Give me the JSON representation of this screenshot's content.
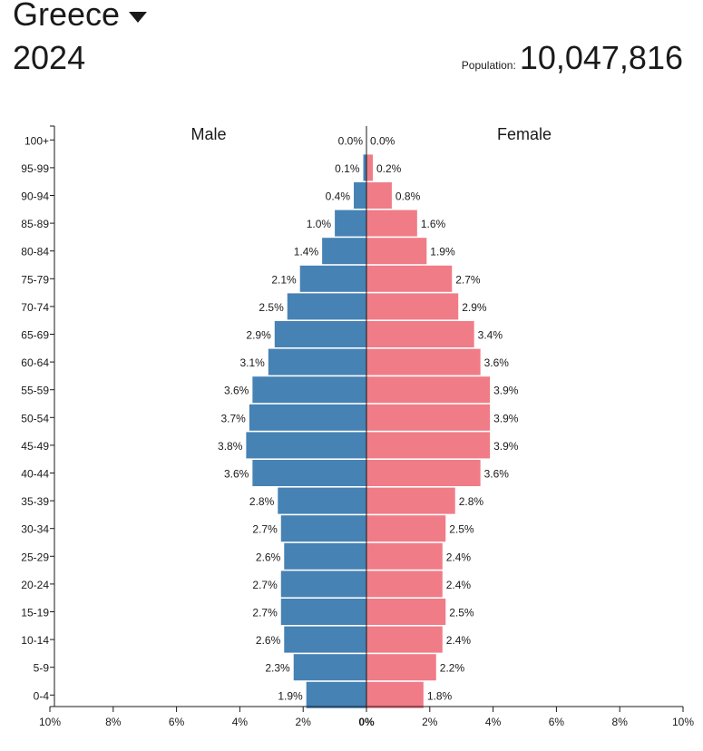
{
  "header": {
    "country": "Greece",
    "year": "2024",
    "population_label": "Population:",
    "population_value": "10,047,816"
  },
  "colors": {
    "male": "#4682b4",
    "female": "#f07c87"
  },
  "chart_data": {
    "type": "bar",
    "orientation": "horizontal-population-pyramid",
    "categories": [
      "100+",
      "95-99",
      "90-94",
      "85-89",
      "80-84",
      "75-79",
      "70-74",
      "65-69",
      "60-64",
      "55-59",
      "50-54",
      "45-49",
      "40-44",
      "35-39",
      "30-34",
      "25-29",
      "20-24",
      "15-19",
      "10-14",
      "5-9",
      "0-4"
    ],
    "series": [
      {
        "name": "Male",
        "values": [
          0.0,
          0.1,
          0.4,
          1.0,
          1.4,
          2.1,
          2.5,
          2.9,
          3.1,
          3.6,
          3.7,
          3.8,
          3.6,
          2.8,
          2.7,
          2.6,
          2.7,
          2.7,
          2.6,
          2.3,
          1.9
        ],
        "labels": [
          "0.0%",
          "0.1%",
          "0.4%",
          "1.0%",
          "1.4%",
          "2.1%",
          "2.5%",
          "2.9%",
          "3.1%",
          "3.6%",
          "3.7%",
          "3.8%",
          "3.6%",
          "2.8%",
          "2.7%",
          "2.6%",
          "2.7%",
          "2.7%",
          "2.6%",
          "2.3%",
          "1.9%"
        ]
      },
      {
        "name": "Female",
        "values": [
          0.0,
          0.2,
          0.8,
          1.6,
          1.9,
          2.7,
          2.9,
          3.4,
          3.6,
          3.9,
          3.9,
          3.9,
          3.6,
          2.8,
          2.5,
          2.4,
          2.4,
          2.5,
          2.4,
          2.2,
          1.8
        ],
        "labels": [
          "0.0%",
          "0.2%",
          "0.8%",
          "1.6%",
          "1.9%",
          "2.7%",
          "2.9%",
          "3.4%",
          "3.6%",
          "3.9%",
          "3.9%",
          "3.9%",
          "3.6%",
          "2.8%",
          "2.5%",
          "2.4%",
          "2.4%",
          "2.5%",
          "2.4%",
          "2.2%",
          "1.8%"
        ]
      }
    ],
    "x_ticks": [
      "10%",
      "8%",
      "6%",
      "4%",
      "2%",
      "0%",
      "2%",
      "4%",
      "6%",
      "8%",
      "10%"
    ],
    "xlim": [
      -10,
      10
    ],
    "grid": false,
    "legend": "series names printed above each side"
  }
}
